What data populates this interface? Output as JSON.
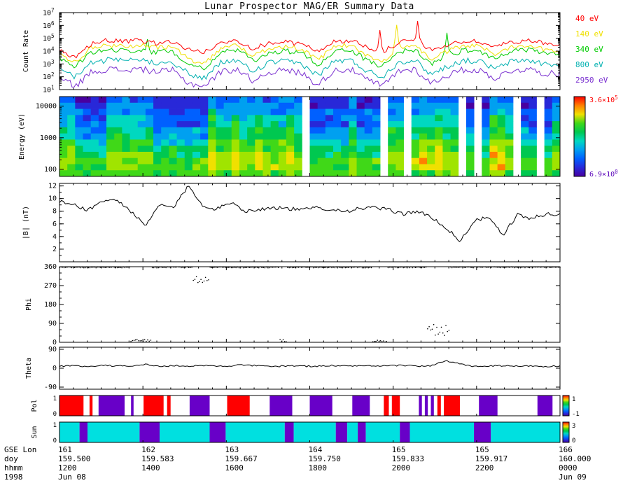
{
  "title": "Lunar Prospector MAG/ER Summary Data",
  "chart_data": {
    "type": "line",
    "title": "Lunar Prospector MAG/ER Summary Data",
    "x_axis": {
      "left_labels": [
        "GSE Lon",
        "doy",
        "hhmm",
        "1998"
      ],
      "rows": [
        [
          "161",
          "162",
          "163",
          "164",
          "165",
          "165",
          "166"
        ],
        [
          "159.500",
          "159.583",
          "159.667",
          "159.750",
          "159.833",
          "159.917",
          "160.000"
        ],
        [
          "1200",
          "1400",
          "1600",
          "1800",
          "2000",
          "2200",
          "0000"
        ],
        [
          "Jun 08",
          "",
          "",
          "",
          "",
          "",
          "Jun 09"
        ]
      ]
    },
    "panels": {
      "count": {
        "type": "line",
        "ylabel": "Count Rate",
        "scale": "log",
        "ylim_exp": [
          1,
          7
        ],
        "ytick_exponents": [
          1,
          2,
          3,
          4,
          5,
          6,
          7
        ],
        "legend": [
          {
            "label": "40 eV",
            "color": "#ff0000"
          },
          {
            "label": "140 eV",
            "color": "#f0e000"
          },
          {
            "label": "340 eV",
            "color": "#00cc00"
          },
          {
            "label": "800 eV",
            "color": "#00b0b0"
          },
          {
            "label": "2950 eV",
            "color": "#7a30d0"
          }
        ],
        "series": [
          {
            "name": "40 eV",
            "color": "#ff0000",
            "jitter": 0.18,
            "log_control": [
              4.0,
              3.4,
              4.6,
              4.8,
              4.7,
              4.8,
              4.6,
              4.7,
              4.1,
              3.9,
              4.6,
              4.8,
              4.2,
              4.6,
              4.7,
              4.5,
              4.0,
              4.7,
              4.8,
              4.3,
              3.9,
              4.65,
              4.8,
              4.1,
              4.4,
              4.75,
              4.7,
              4.3,
              4.7,
              4.8,
              4.6,
              4.5
            ]
          },
          {
            "name": "140 eV",
            "color": "#f0e000",
            "jitter": 0.18,
            "log_control": [
              3.75,
              3.15,
              4.25,
              4.45,
              4.35,
              4.45,
              4.25,
              4.35,
              3.35,
              3.05,
              4.25,
              4.45,
              3.55,
              4.25,
              4.35,
              4.15,
              3.25,
              4.35,
              4.45,
              3.65,
              3.15,
              4.3,
              4.45,
              3.35,
              3.95,
              4.4,
              4.35,
              3.75,
              4.35,
              4.45,
              4.15,
              4.05
            ]
          },
          {
            "name": "340 eV",
            "color": "#00cc00",
            "jitter": 0.2,
            "log_control": [
              3.4,
              2.8,
              3.9,
              4.1,
              4.0,
              4.1,
              3.9,
              4.0,
              3.0,
              2.7,
              3.9,
              4.1,
              3.2,
              3.9,
              4.0,
              3.8,
              2.9,
              4.0,
              4.1,
              3.3,
              2.8,
              3.95,
              4.1,
              3.0,
              3.6,
              4.05,
              4.0,
              3.4,
              4.0,
              4.1,
              3.8,
              3.7
            ]
          },
          {
            "name": "800 eV",
            "color": "#00b0b0",
            "jitter": 0.22,
            "log_control": [
              2.6,
              2.0,
              3.1,
              3.3,
              3.2,
              3.3,
              3.1,
              3.2,
              2.2,
              1.9,
              3.1,
              3.3,
              2.4,
              3.1,
              3.2,
              3.0,
              2.1,
              3.2,
              3.3,
              2.5,
              2.0,
              3.15,
              3.3,
              2.2,
              2.8,
              3.25,
              3.2,
              2.6,
              3.2,
              3.3,
              3.0,
              2.9
            ]
          },
          {
            "name": "2950 eV",
            "color": "#7a30d0",
            "jitter": 0.25,
            "log_control": [
              1.9,
              1.3,
              2.4,
              2.6,
              2.5,
              2.6,
              2.4,
              2.5,
              1.5,
              1.3,
              2.4,
              2.6,
              1.7,
              2.4,
              2.5,
              2.3,
              1.4,
              2.5,
              2.6,
              1.8,
              1.3,
              2.45,
              2.6,
              1.5,
              2.1,
              2.55,
              2.5,
              1.9,
              2.5,
              2.6,
              2.3,
              2.2
            ]
          }
        ],
        "spikes": [
          {
            "s": 0,
            "t": 0.715,
            "v": 6.3
          },
          {
            "s": 1,
            "t": 0.675,
            "v": 6.0
          },
          {
            "s": 2,
            "t": 0.776,
            "v": 5.4
          },
          {
            "s": 2,
            "t": 0.175,
            "v": 4.9
          },
          {
            "s": 0,
            "t": 0.64,
            "v": 5.6
          }
        ]
      },
      "spec": {
        "type": "heatmap",
        "ylabel": "Energy (eV)",
        "scale": "log",
        "ylim": [
          60,
          20000
        ],
        "yticks": [
          100,
          1000,
          10000
        ],
        "colorbar": {
          "top_label": "3.6×10",
          "top_exp": "5",
          "top_color": "#ff0000",
          "bottom_label": "6.9×10",
          "bottom_exp": "0",
          "bottom_color": "#5800b8"
        },
        "palette": [
          "#4800a0",
          "#2828d8",
          "#0060ff",
          "#00a0f0",
          "#00d8c0",
          "#00c850",
          "#40d818",
          "#a0e400",
          "#f0e000",
          "#ff8000"
        ],
        "col_types": "bbaaaabbbbbbaaaaaaaybbybbybbbyb.aaaaabaaa.bb.bybybb.a.ayyb.aa.ab",
        "profiles": {
          "a": [
            1,
            1,
            2,
            2,
            2,
            3,
            3,
            4,
            5,
            5,
            6,
            6,
            6
          ],
          "b": [
            2,
            3,
            3,
            4,
            4,
            5,
            5,
            6,
            6,
            7,
            7,
            7,
            6
          ],
          "y": [
            3,
            3,
            4,
            5,
            5,
            6,
            6,
            7,
            7,
            8,
            8,
            8,
            7
          ]
        },
        "rows": 13
      },
      "bmag": {
        "type": "line",
        "ylabel": "|B| (nT)",
        "ylim": [
          0,
          12.4
        ],
        "yticks": [
          2,
          4,
          6,
          8,
          10,
          12
        ],
        "color": "#000000",
        "jitter": 0.3,
        "control": [
          9.5,
          9.0,
          8.2,
          9.6,
          9.8,
          8.0,
          5.6,
          9.0,
          8.6,
          12.0,
          9.0,
          8.3,
          9.5,
          8.0,
          8.3,
          8.6,
          8.4,
          8.2,
          8.6,
          8.3,
          8.0,
          8.4,
          8.6,
          8.2,
          7.6,
          8.0,
          7.0,
          5.5,
          3.2,
          6.5,
          7.0,
          4.2,
          7.4,
          6.8,
          7.6,
          7.4
        ]
      },
      "phi": {
        "type": "scatter",
        "ylabel": "Phi",
        "ylim": [
          0,
          360
        ],
        "yticks": [
          0,
          90,
          180,
          270,
          360
        ],
        "base": 357,
        "jitter": 2.5,
        "features": [
          {
            "t0": 0.265,
            "t1": 0.3,
            "v": 300,
            "sc": 18
          },
          {
            "t0": 0.14,
            "t1": 0.185,
            "v": 8,
            "sc": 6
          },
          {
            "t0": 0.735,
            "t1": 0.78,
            "v": 60,
            "sc": 28
          },
          {
            "t0": 0.625,
            "t1": 0.655,
            "v": 6,
            "sc": 5
          },
          {
            "t0": 0.44,
            "t1": 0.455,
            "v": 8,
            "sc": 6
          }
        ]
      },
      "theta": {
        "type": "line",
        "ylabel": "Theta",
        "ylim": [
          -100,
          100
        ],
        "yticks": [
          -90,
          0,
          90
        ],
        "color": "#000000",
        "jitter": 3.5,
        "control": [
          10,
          12,
          8,
          15,
          10,
          12,
          18,
          8,
          12,
          10,
          14,
          9,
          12,
          16,
          10,
          8,
          12,
          10,
          9,
          13,
          10,
          12,
          9,
          11,
          14,
          10,
          12,
          35,
          20,
          8,
          10,
          12,
          9,
          11,
          8,
          10
        ]
      },
      "pol": {
        "type": "strip",
        "ylabel": "Pol",
        "left_ticks": [
          "1",
          "0"
        ],
        "colorbar_labels": [
          "1",
          "-1"
        ],
        "colors": {
          "1": "#ff0000",
          "-1": "#6800c8"
        },
        "segments": [
          [
            0.0,
            0.048,
            1
          ],
          [
            0.06,
            0.066,
            1
          ],
          [
            0.078,
            0.13,
            -1
          ],
          [
            0.143,
            0.148,
            -1
          ],
          [
            0.168,
            0.208,
            1
          ],
          [
            0.215,
            0.222,
            1
          ],
          [
            0.26,
            0.3,
            -1
          ],
          [
            0.335,
            0.38,
            1
          ],
          [
            0.42,
            0.465,
            -1
          ],
          [
            0.5,
            0.545,
            -1
          ],
          [
            0.585,
            0.62,
            -1
          ],
          [
            0.648,
            0.658,
            1
          ],
          [
            0.664,
            0.68,
            1
          ],
          [
            0.718,
            0.724,
            -1
          ],
          [
            0.73,
            0.736,
            -1
          ],
          [
            0.742,
            0.748,
            -1
          ],
          [
            0.755,
            0.762,
            1
          ],
          [
            0.768,
            0.8,
            1
          ],
          [
            0.838,
            0.875,
            -1
          ],
          [
            0.955,
            0.985,
            -1
          ]
        ]
      },
      "sun": {
        "type": "strip",
        "ylabel": "Sun",
        "left_ticks": [
          "1",
          "0"
        ],
        "colorbar_labels": [
          "3",
          "0"
        ],
        "colors": {
          "1": "#00e0e0",
          "0": "#6800c8"
        },
        "segments": [
          [
            0,
            0.04,
            1
          ],
          [
            0.04,
            0.056,
            0
          ],
          [
            0.056,
            0.16,
            1
          ],
          [
            0.16,
            0.2,
            0
          ],
          [
            0.2,
            0.3,
            1
          ],
          [
            0.3,
            0.332,
            0
          ],
          [
            0.332,
            0.45,
            1
          ],
          [
            0.45,
            0.468,
            0
          ],
          [
            0.468,
            0.552,
            1
          ],
          [
            0.552,
            0.575,
            0
          ],
          [
            0.575,
            0.596,
            1
          ],
          [
            0.596,
            0.612,
            0
          ],
          [
            0.612,
            0.68,
            1
          ],
          [
            0.68,
            0.7,
            0
          ],
          [
            0.7,
            0.828,
            1
          ],
          [
            0.828,
            0.862,
            0
          ],
          [
            0.862,
            1,
            1
          ]
        ]
      }
    }
  }
}
